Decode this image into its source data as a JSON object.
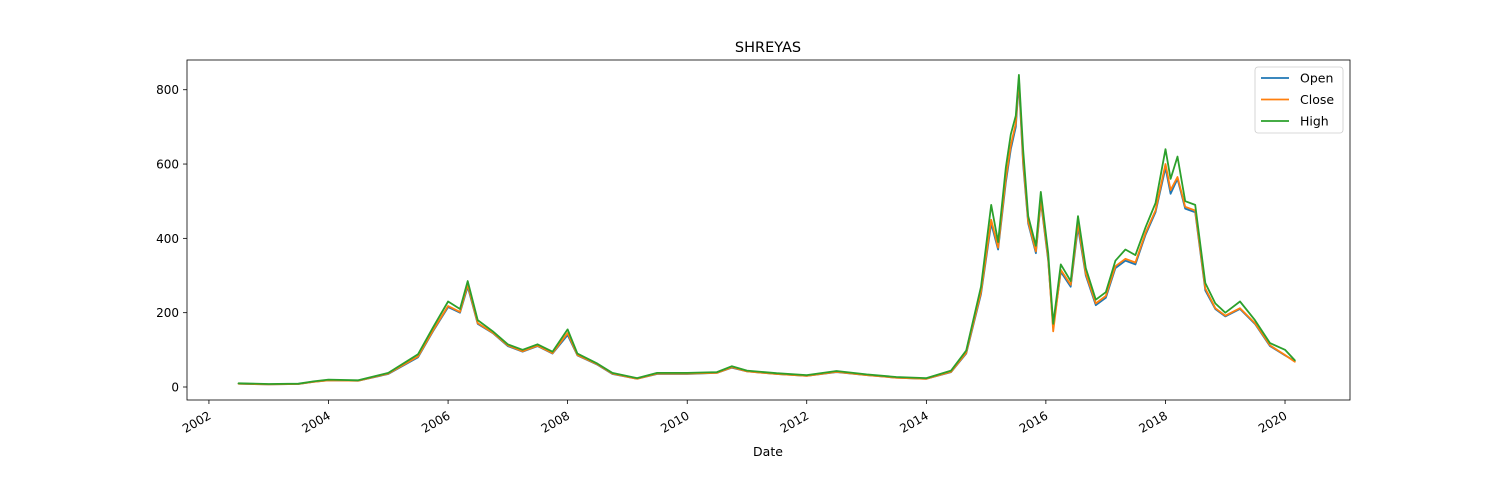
{
  "chart_data": {
    "type": "line",
    "title": "SHREYAS",
    "xlabel": "Date",
    "ylabel": "",
    "xlim": [
      "2001-08-20",
      "2021-02-01"
    ],
    "ylim": [
      -35,
      880
    ],
    "x_ticks": [
      "2002",
      "2004",
      "2006",
      "2008",
      "2010",
      "2012",
      "2014",
      "2016",
      "2018",
      "2020"
    ],
    "y_ticks": [
      0,
      200,
      400,
      600,
      800
    ],
    "grid": false,
    "legend": {
      "position": "top-right"
    },
    "series": [
      {
        "name": "Open",
        "color": "#1f77b4",
        "points": [
          [
            "2002-07-01",
            9
          ],
          [
            "2003-01-01",
            7
          ],
          [
            "2003-07-01",
            8
          ],
          [
            "2003-10-01",
            14
          ],
          [
            "2004-01-01",
            18
          ],
          [
            "2004-07-01",
            17
          ],
          [
            "2005-01-01",
            35
          ],
          [
            "2005-07-01",
            80
          ],
          [
            "2005-10-01",
            150
          ],
          [
            "2006-01-01",
            215
          ],
          [
            "2006-03-15",
            200
          ],
          [
            "2006-05-01",
            270
          ],
          [
            "2006-07-01",
            170
          ],
          [
            "2006-10-01",
            145
          ],
          [
            "2007-01-01",
            110
          ],
          [
            "2007-04-01",
            95
          ],
          [
            "2007-07-01",
            110
          ],
          [
            "2007-10-01",
            90
          ],
          [
            "2008-01-01",
            140
          ],
          [
            "2008-03-01",
            85
          ],
          [
            "2008-07-01",
            60
          ],
          [
            "2008-10-01",
            35
          ],
          [
            "2009-03-01",
            22
          ],
          [
            "2009-07-01",
            35
          ],
          [
            "2010-01-01",
            35
          ],
          [
            "2010-07-01",
            38
          ],
          [
            "2010-10-01",
            52
          ],
          [
            "2011-01-01",
            42
          ],
          [
            "2011-07-01",
            35
          ],
          [
            "2012-01-01",
            30
          ],
          [
            "2012-07-01",
            40
          ],
          [
            "2013-01-01",
            32
          ],
          [
            "2013-07-01",
            25
          ],
          [
            "2014-01-01",
            22
          ],
          [
            "2014-06-01",
            40
          ],
          [
            "2014-09-01",
            90
          ],
          [
            "2014-12-01",
            250
          ],
          [
            "2015-02-01",
            440
          ],
          [
            "2015-03-15",
            370
          ],
          [
            "2015-05-01",
            550
          ],
          [
            "2015-06-01",
            640
          ],
          [
            "2015-07-01",
            700
          ],
          [
            "2015-07-20",
            820
          ],
          [
            "2015-08-15",
            600
          ],
          [
            "2015-09-15",
            440
          ],
          [
            "2015-11-01",
            360
          ],
          [
            "2015-12-01",
            500
          ],
          [
            "2016-01-15",
            340
          ],
          [
            "2016-02-15",
            160
          ],
          [
            "2016-04-01",
            310
          ],
          [
            "2016-06-01",
            270
          ],
          [
            "2016-07-15",
            430
          ],
          [
            "2016-09-01",
            300
          ],
          [
            "2016-11-01",
            220
          ],
          [
            "2017-01-01",
            240
          ],
          [
            "2017-03-01",
            320
          ],
          [
            "2017-05-01",
            340
          ],
          [
            "2017-07-01",
            330
          ],
          [
            "2017-09-01",
            410
          ],
          [
            "2017-11-01",
            470
          ],
          [
            "2018-01-01",
            590
          ],
          [
            "2018-02-01",
            520
          ],
          [
            "2018-03-15",
            560
          ],
          [
            "2018-05-01",
            480
          ],
          [
            "2018-07-01",
            470
          ],
          [
            "2018-09-01",
            260
          ],
          [
            "2018-11-01",
            210
          ],
          [
            "2019-01-01",
            190
          ],
          [
            "2019-04-01",
            210
          ],
          [
            "2019-07-01",
            170
          ],
          [
            "2019-10-01",
            110
          ],
          [
            "2020-01-01",
            85
          ],
          [
            "2020-03-01",
            70
          ]
        ]
      },
      {
        "name": "Close",
        "color": "#ff7f0e",
        "points": [
          [
            "2002-07-01",
            9
          ],
          [
            "2003-01-01",
            7
          ],
          [
            "2003-07-01",
            8
          ],
          [
            "2003-10-01",
            14
          ],
          [
            "2004-01-01",
            18
          ],
          [
            "2004-07-01",
            17
          ],
          [
            "2005-01-01",
            36
          ],
          [
            "2005-07-01",
            82
          ],
          [
            "2005-10-01",
            152
          ],
          [
            "2006-01-01",
            218
          ],
          [
            "2006-03-15",
            202
          ],
          [
            "2006-05-01",
            275
          ],
          [
            "2006-07-01",
            172
          ],
          [
            "2006-10-01",
            146
          ],
          [
            "2007-01-01",
            112
          ],
          [
            "2007-04-01",
            96
          ],
          [
            "2007-07-01",
            111
          ],
          [
            "2007-10-01",
            91
          ],
          [
            "2008-01-01",
            145
          ],
          [
            "2008-03-01",
            86
          ],
          [
            "2008-07-01",
            61
          ],
          [
            "2008-10-01",
            36
          ],
          [
            "2009-03-01",
            22
          ],
          [
            "2009-07-01",
            36
          ],
          [
            "2010-01-01",
            36
          ],
          [
            "2010-07-01",
            38
          ],
          [
            "2010-10-01",
            53
          ],
          [
            "2011-01-01",
            42
          ],
          [
            "2011-07-01",
            35
          ],
          [
            "2012-01-01",
            30
          ],
          [
            "2012-07-01",
            41
          ],
          [
            "2013-01-01",
            32
          ],
          [
            "2013-07-01",
            25
          ],
          [
            "2014-01-01",
            22
          ],
          [
            "2014-06-01",
            41
          ],
          [
            "2014-09-01",
            92
          ],
          [
            "2014-12-01",
            255
          ],
          [
            "2015-02-01",
            450
          ],
          [
            "2015-03-15",
            375
          ],
          [
            "2015-05-01",
            560
          ],
          [
            "2015-06-01",
            650
          ],
          [
            "2015-07-01",
            710
          ],
          [
            "2015-07-20",
            830
          ],
          [
            "2015-08-15",
            610
          ],
          [
            "2015-09-15",
            445
          ],
          [
            "2015-11-01",
            365
          ],
          [
            "2015-12-01",
            505
          ],
          [
            "2016-01-15",
            345
          ],
          [
            "2016-02-15",
            150
          ],
          [
            "2016-04-01",
            315
          ],
          [
            "2016-06-01",
            275
          ],
          [
            "2016-07-15",
            440
          ],
          [
            "2016-09-01",
            305
          ],
          [
            "2016-11-01",
            225
          ],
          [
            "2017-01-01",
            245
          ],
          [
            "2017-03-01",
            325
          ],
          [
            "2017-05-01",
            345
          ],
          [
            "2017-07-01",
            335
          ],
          [
            "2017-09-01",
            415
          ],
          [
            "2017-11-01",
            475
          ],
          [
            "2018-01-01",
            600
          ],
          [
            "2018-02-01",
            530
          ],
          [
            "2018-03-15",
            565
          ],
          [
            "2018-05-01",
            485
          ],
          [
            "2018-07-01",
            475
          ],
          [
            "2018-09-01",
            265
          ],
          [
            "2018-11-01",
            212
          ],
          [
            "2019-01-01",
            192
          ],
          [
            "2019-04-01",
            212
          ],
          [
            "2019-07-01",
            172
          ],
          [
            "2019-10-01",
            112
          ],
          [
            "2020-01-01",
            86
          ],
          [
            "2020-03-01",
            68
          ]
        ]
      },
      {
        "name": "High",
        "color": "#2ca02c",
        "points": [
          [
            "2002-07-01",
            10
          ],
          [
            "2003-01-01",
            8
          ],
          [
            "2003-07-01",
            9
          ],
          [
            "2003-10-01",
            15
          ],
          [
            "2004-01-01",
            20
          ],
          [
            "2004-07-01",
            18
          ],
          [
            "2005-01-01",
            38
          ],
          [
            "2005-07-01",
            88
          ],
          [
            "2005-10-01",
            160
          ],
          [
            "2006-01-01",
            230
          ],
          [
            "2006-03-15",
            210
          ],
          [
            "2006-05-01",
            285
          ],
          [
            "2006-07-01",
            180
          ],
          [
            "2006-10-01",
            150
          ],
          [
            "2007-01-01",
            115
          ],
          [
            "2007-04-01",
            100
          ],
          [
            "2007-07-01",
            115
          ],
          [
            "2007-10-01",
            95
          ],
          [
            "2008-01-01",
            155
          ],
          [
            "2008-03-01",
            90
          ],
          [
            "2008-07-01",
            63
          ],
          [
            "2008-10-01",
            38
          ],
          [
            "2009-03-01",
            24
          ],
          [
            "2009-07-01",
            38
          ],
          [
            "2010-01-01",
            38
          ],
          [
            "2010-07-01",
            40
          ],
          [
            "2010-10-01",
            56
          ],
          [
            "2011-01-01",
            44
          ],
          [
            "2011-07-01",
            37
          ],
          [
            "2012-01-01",
            32
          ],
          [
            "2012-07-01",
            43
          ],
          [
            "2013-01-01",
            34
          ],
          [
            "2013-07-01",
            27
          ],
          [
            "2014-01-01",
            24
          ],
          [
            "2014-06-01",
            44
          ],
          [
            "2014-09-01",
            98
          ],
          [
            "2014-12-01",
            270
          ],
          [
            "2015-02-01",
            490
          ],
          [
            "2015-03-15",
            390
          ],
          [
            "2015-05-01",
            590
          ],
          [
            "2015-06-01",
            680
          ],
          [
            "2015-07-01",
            730
          ],
          [
            "2015-07-20",
            840
          ],
          [
            "2015-08-15",
            640
          ],
          [
            "2015-09-15",
            460
          ],
          [
            "2015-11-01",
            380
          ],
          [
            "2015-12-01",
            525
          ],
          [
            "2016-01-15",
            360
          ],
          [
            "2016-02-15",
            170
          ],
          [
            "2016-04-01",
            330
          ],
          [
            "2016-06-01",
            285
          ],
          [
            "2016-07-15",
            460
          ],
          [
            "2016-09-01",
            320
          ],
          [
            "2016-11-01",
            235
          ],
          [
            "2017-01-01",
            255
          ],
          [
            "2017-03-01",
            340
          ],
          [
            "2017-05-01",
            370
          ],
          [
            "2017-07-01",
            355
          ],
          [
            "2017-09-01",
            430
          ],
          [
            "2017-11-01",
            495
          ],
          [
            "2018-01-01",
            640
          ],
          [
            "2018-02-01",
            560
          ],
          [
            "2018-03-15",
            620
          ],
          [
            "2018-05-01",
            500
          ],
          [
            "2018-07-01",
            490
          ],
          [
            "2018-09-01",
            280
          ],
          [
            "2018-11-01",
            225
          ],
          [
            "2019-01-01",
            200
          ],
          [
            "2019-04-01",
            230
          ],
          [
            "2019-07-01",
            180
          ],
          [
            "2019-10-01",
            118
          ],
          [
            "2020-01-01",
            100
          ],
          [
            "2020-03-01",
            72
          ]
        ]
      }
    ]
  }
}
